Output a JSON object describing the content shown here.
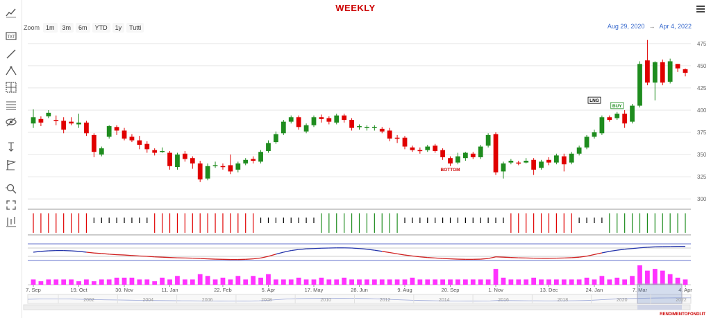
{
  "header": {
    "title": "WEEKLY",
    "zoom_label": "Zoom",
    "zoom_buttons": [
      "1m",
      "3m",
      "6m",
      "YTD",
      "1y",
      "Tutti"
    ],
    "range_from": "Aug 29, 2020",
    "range_arrow": "→",
    "range_to": "Apr 4, 2022"
  },
  "toolbar": {
    "tools": [
      "trend-icon",
      "text-icon",
      "line-icon",
      "pitchfork-icon",
      "crosshair-icon",
      "fibonacci-icon",
      "hide-icon",
      "measure-icon",
      "flag-icon",
      "zoom-in-icon",
      "fullscreen-icon",
      "indicators-icon"
    ]
  },
  "colors": {
    "up": "#1e8c1e",
    "down": "#e00000",
    "signal_buy": "#1e8c1e",
    "signal_sell": "#e00000",
    "signal_neutral": "#000000",
    "osc_line": "#2233aa",
    "osc_line2": "#d02020",
    "volume": "#ff33ff"
  },
  "chart_data": {
    "type": "candlestick",
    "y_axis": {
      "ticks": [
        300,
        325,
        350,
        375,
        400,
        425,
        450,
        475
      ],
      "min": 290,
      "max": 485,
      "position": "right"
    },
    "x_ticks": [
      "7. Sep",
      "19. Oct",
      "30. Nov",
      "11. Jan",
      "22. Feb",
      "5. Apr",
      "17. May",
      "28. Jun",
      "9. Aug",
      "20. Sep",
      "1. Nov",
      "13. Dec",
      "24. Jan",
      "7. Mar",
      "4. Apr"
    ],
    "navigator_years": [
      "2002",
      "2004",
      "2006",
      "2008",
      "2010",
      "2012",
      "2014",
      "2016",
      "2018",
      "2020",
      "2022"
    ],
    "candles": [
      [
        385,
        392,
        380,
        401
      ],
      [
        390,
        386,
        382,
        393
      ],
      [
        393,
        397,
        391,
        400
      ],
      [
        389,
        388,
        383,
        394
      ],
      [
        388,
        378,
        374,
        392
      ],
      [
        387,
        385,
        383,
        392
      ],
      [
        384,
        386,
        380,
        396
      ],
      [
        386,
        374,
        371,
        388
      ],
      [
        372,
        353,
        347,
        374
      ],
      [
        350,
        357,
        348,
        359
      ],
      [
        370,
        382,
        368,
        383
      ],
      [
        381,
        377,
        372,
        383
      ],
      [
        377,
        368,
        366,
        380
      ],
      [
        370,
        366,
        364,
        373
      ],
      [
        366,
        361,
        356,
        371
      ],
      [
        362,
        356,
        352,
        365
      ],
      [
        355,
        352,
        349,
        357
      ],
      [
        354,
        354,
        352,
        358
      ],
      [
        352,
        337,
        333,
        354
      ],
      [
        336,
        350,
        333,
        352
      ],
      [
        351,
        345,
        342,
        354
      ],
      [
        346,
        340,
        334,
        348
      ],
      [
        340,
        322,
        319,
        343
      ],
      [
        323,
        337,
        321,
        340
      ],
      [
        338,
        338,
        335,
        342
      ],
      [
        337,
        336,
        333,
        340
      ],
      [
        338,
        331,
        328,
        350
      ],
      [
        333,
        340,
        330,
        342
      ],
      [
        340,
        344,
        338,
        346
      ],
      [
        345,
        343,
        340,
        348
      ],
      [
        342,
        353,
        340,
        355
      ],
      [
        354,
        363,
        352,
        366
      ],
      [
        364,
        373,
        362,
        376
      ],
      [
        374,
        387,
        372,
        389
      ],
      [
        387,
        392,
        385,
        394
      ],
      [
        392,
        381,
        378,
        394
      ],
      [
        376,
        383,
        374,
        385
      ],
      [
        383,
        392,
        381,
        394
      ],
      [
        392,
        390,
        386,
        395
      ],
      [
        391,
        387,
        384,
        393
      ],
      [
        386,
        394,
        384,
        396
      ],
      [
        394,
        389,
        386,
        396
      ],
      [
        389,
        380,
        377,
        391
      ],
      [
        381,
        382,
        378,
        384
      ],
      [
        381,
        381,
        377,
        383
      ],
      [
        381,
        381,
        377,
        383
      ],
      [
        379,
        376,
        374,
        381
      ],
      [
        377,
        368,
        365,
        380
      ],
      [
        369,
        368,
        363,
        372
      ],
      [
        369,
        359,
        356,
        371
      ],
      [
        358,
        355,
        353,
        360
      ],
      [
        355,
        354,
        351,
        358
      ],
      [
        355,
        359,
        353,
        361
      ],
      [
        360,
        354,
        352,
        362
      ],
      [
        355,
        347,
        344,
        357
      ],
      [
        346,
        340,
        337,
        348
      ],
      [
        341,
        348,
        339,
        352
      ],
      [
        346,
        352,
        343,
        353
      ],
      [
        351,
        347,
        345,
        353
      ],
      [
        347,
        359,
        345,
        361
      ],
      [
        360,
        372,
        358,
        374
      ],
      [
        373,
        330,
        327,
        375
      ],
      [
        331,
        340,
        323,
        342
      ],
      [
        341,
        343,
        339,
        345
      ],
      [
        341,
        340,
        338,
        343
      ],
      [
        341,
        343,
        340,
        346
      ],
      [
        344,
        333,
        327,
        346
      ],
      [
        335,
        342,
        333,
        344
      ],
      [
        344,
        341,
        338,
        347
      ],
      [
        341,
        349,
        339,
        351
      ],
      [
        348,
        339,
        331,
        351
      ],
      [
        341,
        351,
        339,
        353
      ],
      [
        351,
        358,
        349,
        360
      ],
      [
        358,
        370,
        356,
        372
      ],
      [
        370,
        375,
        368,
        378
      ],
      [
        374,
        392,
        372,
        394
      ],
      [
        392,
        389,
        387,
        394
      ],
      [
        391,
        396,
        389,
        398
      ],
      [
        396,
        385,
        380,
        400
      ],
      [
        387,
        405,
        385,
        407
      ],
      [
        405,
        452,
        403,
        455
      ],
      [
        456,
        431,
        428,
        479
      ],
      [
        431,
        454,
        411,
        455
      ],
      [
        454,
        431,
        428,
        457
      ],
      [
        432,
        455,
        430,
        458
      ],
      [
        452,
        447,
        443,
        452
      ],
      [
        446,
        442,
        438,
        447
      ]
    ],
    "annotations": [
      {
        "label": "BOTTOM",
        "candle": 55,
        "y": 332,
        "color": "#cc0000"
      },
      {
        "label": "LNG",
        "candle": 74,
        "y": 410,
        "color": "#000000"
      },
      {
        "label": "BUY",
        "candle": 77,
        "y": 404,
        "color": "#1e8c1e"
      }
    ],
    "signal_panel": {
      "type": "signal-bars",
      "segments": [
        {
          "from": 0,
          "to": 7,
          "signal": "sell"
        },
        {
          "from": 8,
          "to": 15,
          "signal": "neutral"
        },
        {
          "from": 16,
          "to": 29,
          "signal": "sell"
        },
        {
          "from": 30,
          "to": 37,
          "signal": "neutral"
        },
        {
          "from": 38,
          "to": 48,
          "signal": "buy"
        },
        {
          "from": 49,
          "to": 62,
          "signal": "neutral"
        },
        {
          "from": 63,
          "to": 71,
          "signal": "sell"
        },
        {
          "from": 72,
          "to": 75,
          "signal": "neutral"
        },
        {
          "from": 76,
          "to": 86,
          "signal": "buy"
        }
      ]
    },
    "oscillator": {
      "type": "line",
      "levels": [
        0.75,
        0.25
      ],
      "values": [
        0.5,
        0.55,
        0.58,
        0.6,
        0.6,
        0.58,
        0.55,
        0.5,
        0.45,
        0.42,
        0.38,
        0.35,
        0.33,
        0.3,
        0.27,
        0.25,
        0.22,
        0.2,
        0.18,
        0.16,
        0.15,
        0.14,
        0.12,
        0.1,
        0.08,
        0.07,
        0.06,
        0.06,
        0.07,
        0.1,
        0.15,
        0.25,
        0.38,
        0.5,
        0.6,
        0.66,
        0.7,
        0.72,
        0.74,
        0.75,
        0.76,
        0.76,
        0.75,
        0.72,
        0.68,
        0.62,
        0.55,
        0.48,
        0.4,
        0.33,
        0.27,
        0.22,
        0.18,
        0.15,
        0.12,
        0.1,
        0.08,
        0.07,
        0.07,
        0.08,
        0.12,
        0.22,
        0.2,
        0.18,
        0.16,
        0.15,
        0.14,
        0.13,
        0.13,
        0.14,
        0.15,
        0.17,
        0.2,
        0.26,
        0.36,
        0.46,
        0.55,
        0.62,
        0.68,
        0.72,
        0.76,
        0.8,
        0.82,
        0.83,
        0.84,
        0.85,
        0.85
      ]
    },
    "volume": {
      "type": "bar",
      "values": [
        3,
        2,
        3,
        3,
        3,
        3,
        2,
        3,
        2,
        3,
        3,
        4,
        4,
        4,
        3,
        3,
        2,
        4,
        3,
        5,
        3,
        3,
        6,
        5,
        3,
        4,
        3,
        5,
        3,
        5,
        4,
        6,
        3,
        3,
        3,
        4,
        3,
        3,
        4,
        3,
        3,
        4,
        3,
        3,
        3,
        3,
        3,
        3,
        3,
        3,
        4,
        3,
        3,
        3,
        3,
        3,
        3,
        3,
        3,
        3,
        3,
        9,
        4,
        3,
        3,
        3,
        4,
        3,
        3,
        3,
        3,
        3,
        3,
        4,
        3,
        5,
        3,
        4,
        3,
        5,
        11,
        8,
        9,
        8,
        6,
        4,
        3
      ]
    }
  },
  "footer": {
    "credit": "RENDIMENTOFONDI.IT"
  }
}
